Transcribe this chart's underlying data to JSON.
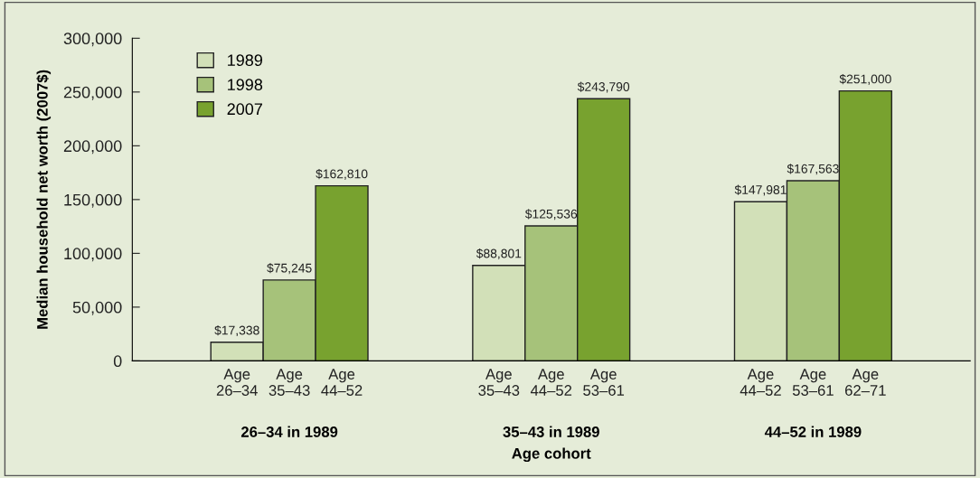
{
  "chart_data": {
    "type": "bar",
    "ylabel": "Median household net worth (2007$)",
    "xlabel": "Age cohort",
    "categories": [
      "26–34 in 1989",
      "35–43 in 1989",
      "44–52 in 1989"
    ],
    "series": [
      {
        "name": "1989",
        "color": "#d2e0b8",
        "values": [
          17338,
          88801,
          147981
        ],
        "value_labels": [
          "$17,338",
          "$88,801",
          "$147,981"
        ]
      },
      {
        "name": "1998",
        "color": "#a6c27a",
        "values": [
          75245,
          125536,
          167563
        ],
        "value_labels": [
          "$75,245",
          "$125,536",
          "$167,563"
        ]
      },
      {
        "name": "2007",
        "color": "#78a22f",
        "values": [
          162810,
          243790,
          251000
        ],
        "value_labels": [
          "$162,810",
          "$243,790",
          "$251,000"
        ]
      }
    ],
    "annotations": [
      "Age\n26–34",
      "Age\n35–43",
      "Age\n44–52",
      "Age\n35–43",
      "Age\n44–52",
      "Age\n53–61",
      "Age\n44–52",
      "Age\n53–61",
      "Age\n62–71"
    ],
    "ylim": [
      0,
      300000
    ],
    "yticks": [
      {
        "value": 0,
        "label": "0"
      },
      {
        "value": 50000,
        "label": "50,000"
      },
      {
        "value": 100000,
        "label": "100,000"
      },
      {
        "value": 150000,
        "label": "150,000"
      },
      {
        "value": 200000,
        "label": "200,000"
      },
      {
        "value": 250000,
        "label": "250,000"
      },
      {
        "value": 300000,
        "label": "300,000"
      }
    ],
    "grid": false,
    "legend": "top left"
  }
}
